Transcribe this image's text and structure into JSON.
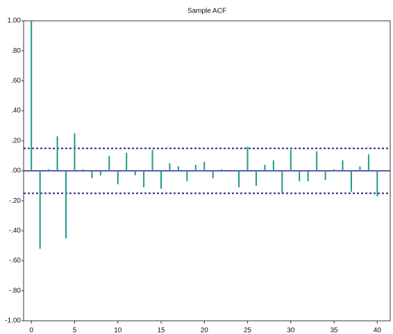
{
  "chart_data": {
    "type": "stem",
    "title": "Sample ACF",
    "x": [
      0,
      1,
      2,
      3,
      4,
      5,
      6,
      7,
      8,
      9,
      10,
      11,
      12,
      13,
      14,
      15,
      16,
      17,
      18,
      19,
      20,
      21,
      22,
      23,
      24,
      25,
      26,
      27,
      28,
      29,
      30,
      31,
      32,
      33,
      34,
      35,
      36,
      37,
      38,
      39,
      40
    ],
    "values": [
      1.0,
      -0.52,
      0.01,
      0.23,
      -0.45,
      0.25,
      0.01,
      -0.05,
      -0.03,
      0.1,
      -0.09,
      0.12,
      -0.03,
      -0.11,
      0.14,
      -0.12,
      0.05,
      0.03,
      -0.07,
      0.04,
      0.06,
      -0.05,
      0.01,
      0,
      -0.11,
      0.16,
      -0.1,
      0.04,
      0.07,
      -0.15,
      0.14,
      -0.07,
      -0.07,
      0.13,
      -0.06,
      0.01,
      0.07,
      -0.14,
      0.03,
      0.11,
      -0.17
    ],
    "color": "#1b9a8c",
    "confidence_bands": [
      0.15,
      -0.15
    ],
    "band_color": "#22228a",
    "xlim": [
      -0.9,
      41.5
    ],
    "xticks": [
      0,
      5,
      10,
      15,
      20,
      25,
      30,
      35,
      40
    ],
    "ylim": [
      -1,
      1
    ],
    "yticks": [
      {
        "value": 1,
        "label": "1.00"
      },
      {
        "value": 0.8,
        "label": ".80"
      },
      {
        "value": 0.6,
        "label": ".60"
      },
      {
        "value": 0.4,
        "label": ".40"
      },
      {
        "value": 0.2,
        "label": ".20"
      },
      {
        "value": 0,
        "label": ".00"
      },
      {
        "value": -0.2,
        "label": "-.20"
      },
      {
        "value": -0.4,
        "label": "-.40"
      },
      {
        "value": -0.6,
        "label": "-.60"
      },
      {
        "value": -0.8,
        "label": "-.80"
      },
      {
        "value": -1,
        "label": "-1.00"
      }
    ]
  }
}
